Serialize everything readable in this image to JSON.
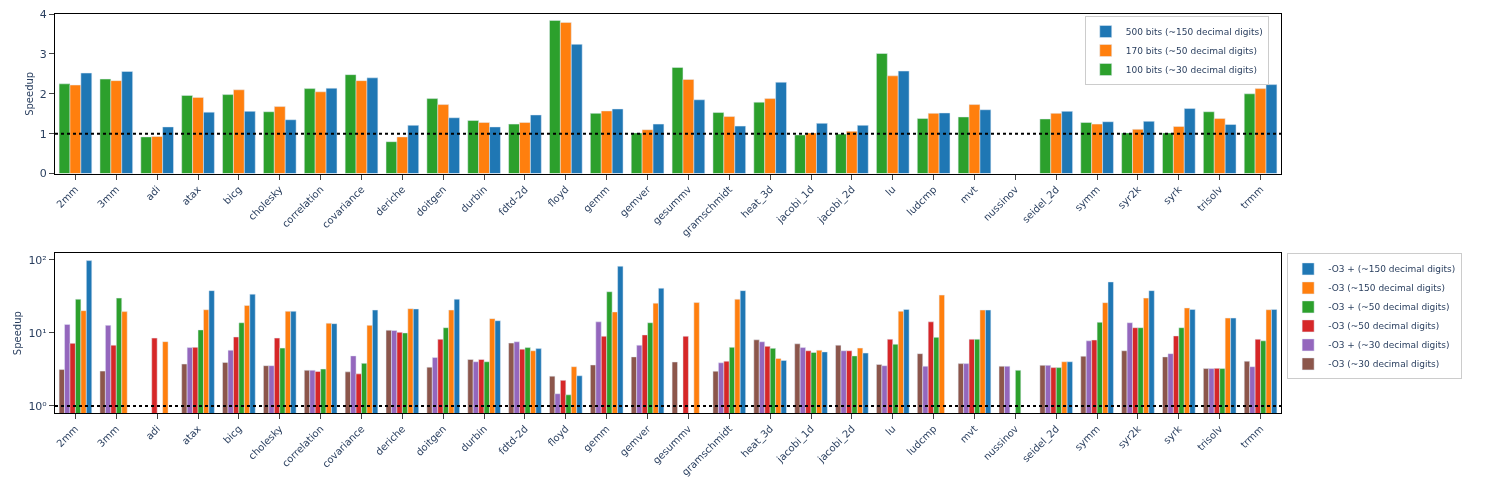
{
  "chart_data": [
    {
      "type": "bar",
      "ylabel": "Speedup",
      "categories": [
        "2mm",
        "3mm",
        "adi",
        "atax",
        "bicg",
        "cholesky",
        "correlation",
        "covariance",
        "deriche",
        "doitgen",
        "durbin",
        "fdtd-2d",
        "floyd",
        "gemm",
        "gemver",
        "gesummv",
        "gramschmidt",
        "heat_3d",
        "jacobi_1d",
        "jacobi_2d",
        "lu",
        "ludcmp",
        "mvt",
        "nussinov",
        "seidel_2d",
        "symm",
        "syr2k",
        "syrk",
        "trisolv",
        "trmm"
      ],
      "series": [
        {
          "name": "100 bits (~30 decimal digits)",
          "color": "#2ca02c",
          "values": [
            2.25,
            2.37,
            0.92,
            1.96,
            1.98,
            1.55,
            2.13,
            2.48,
            0.8,
            1.88,
            1.33,
            1.24,
            3.84,
            1.51,
            1.02,
            2.66,
            1.53,
            1.79,
            0.97,
            0.99,
            3.01,
            1.38,
            1.42,
            null,
            1.37,
            1.28,
            1.02,
            1.02,
            1.55,
            2.0
          ]
        },
        {
          "name": "170 bits (~50 decimal digits)",
          "color": "#ff7f0e",
          "values": [
            2.22,
            2.33,
            0.93,
            1.91,
            2.1,
            1.68,
            2.05,
            2.33,
            0.92,
            1.73,
            1.28,
            1.28,
            3.79,
            1.57,
            1.1,
            2.36,
            1.43,
            1.88,
            1.02,
            1.06,
            2.45,
            1.51,
            1.73,
            null,
            1.51,
            1.24,
            1.11,
            1.18,
            1.38,
            2.13
          ]
        },
        {
          "name": "500 bits (~150 decimal digits)",
          "color": "#1f77b4",
          "values": [
            2.52,
            2.56,
            1.17,
            1.54,
            1.56,
            1.35,
            2.14,
            2.4,
            1.21,
            1.4,
            1.17,
            1.47,
            3.24,
            1.62,
            1.24,
            1.85,
            1.19,
            2.29,
            1.26,
            1.21,
            2.57,
            1.52,
            1.6,
            null,
            1.56,
            1.3,
            1.31,
            1.63,
            1.23,
            2.23
          ]
        }
      ],
      "ylim": [
        0,
        4
      ],
      "yticks": [
        0,
        1,
        2,
        3,
        4
      ],
      "legend": "top right",
      "ref_lines": [
        {
          "axis": "y",
          "value": 1,
          "color": "#000000",
          "line_style": "dotted"
        }
      ]
    },
    {
      "type": "bar",
      "ylabel": "Speedup",
      "log": true,
      "categories": [
        "2mm",
        "3mm",
        "adi",
        "atax",
        "bicg",
        "cholesky",
        "correlation",
        "covariance",
        "deriche",
        "doitgen",
        "durbin",
        "fdtd-2d",
        "floyd",
        "gemm",
        "gemver",
        "gesummv",
        "gramschmidt",
        "heat_3d",
        "jacobi_1d",
        "jacobi_2d",
        "lu",
        "ludcmp",
        "mvt",
        "nussinov",
        "seidel_2d",
        "symm",
        "syr2k",
        "syrk",
        "trisolv",
        "trmm"
      ],
      "series": [
        {
          "name": "-O3 (~30 decimal digits)",
          "color": "#8c564b",
          "values": [
            3.15,
            3.0,
            null,
            3.75,
            3.95,
            3.56,
            3.08,
            2.93,
            10.9,
            3.4,
            4.33,
            7.26,
            2.56,
            3.64,
            4.7,
            4.0,
            2.99,
            8.05,
            7.1,
            6.8,
            3.7,
            5.2,
            3.8,
            3.5,
            3.6,
            4.8,
            5.7,
            4.7,
            3.25,
            4.1
          ]
        },
        {
          "name": "-O3 + (~30 decimal digits)",
          "color": "#9467bd",
          "values": [
            13.1,
            12.7,
            null,
            6.3,
            5.8,
            3.56,
            3.08,
            4.85,
            10.8,
            4.6,
            4.03,
            7.57,
            1.47,
            14.2,
            6.8,
            null,
            3.9,
            7.57,
            6.3,
            5.7,
            3.56,
            3.5,
            3.8,
            3.5,
            3.6,
            7.8,
            13.8,
            5.2,
            3.25,
            3.45
          ]
        },
        {
          "name": "-O3 (~50 decimal digits)",
          "color": "#d62728",
          "values": [
            7.2,
            6.8,
            8.5,
            6.35,
            8.8,
            8.5,
            2.96,
            2.75,
            10.2,
            8.2,
            4.33,
            6.0,
            2.24,
            9.0,
            9.4,
            9.0,
            4.1,
            6.55,
            5.7,
            5.7,
            8.2,
            14.2,
            8.2,
            null,
            3.35,
            8.0,
            11.8,
            9.1,
            3.27,
            8.2
          ]
        },
        {
          "name": "-O3 + (~50 decimal digits)",
          "color": "#2ca02c",
          "values": [
            29,
            30,
            null,
            11,
            13.8,
            6.2,
            3.2,
            3.83,
            10.0,
            11.8,
            4.03,
            6.3,
            1.42,
            36.7,
            13.8,
            null,
            6.35,
            6.15,
            5.4,
            4.85,
            7.0,
            8.7,
            8.2,
            3.08,
            3.35,
            14,
            11.8,
            11.8,
            3.25,
            7.8
          ]
        },
        {
          "name": "-O3 (~150 decimal digits)",
          "color": "#ff7f0e",
          "values": [
            20.2,
            19.6,
            7.6,
            20.8,
            23.8,
            19.8,
            13.6,
            12.7,
            21.5,
            20.6,
            15.7,
            5.7,
            3.45,
            19.4,
            25.6,
            26.1,
            29,
            4.47,
            5.8,
            6.2,
            19.8,
            33,
            20.6,
            null,
            4.03,
            26,
            30,
            22,
            16,
            20.8
          ]
        },
        {
          "name": "-O3 + (~150 decimal digits)",
          "color": "#1f77b4",
          "values": [
            98,
            null,
            null,
            38,
            34,
            19.8,
            13.4,
            20.6,
            21.3,
            29,
            14.7,
            6.1,
            2.59,
            82,
            41,
            null,
            38,
            4.2,
            5.5,
            5.3,
            21,
            null,
            20.6,
            null,
            4.03,
            50,
            38,
            21,
            16,
            21
          ]
        }
      ],
      "ylim": [
        0.8,
        123
      ],
      "yticks": [
        {
          "value": 1,
          "label": "10⁰"
        },
        {
          "value": 10,
          "label": "10¹"
        },
        {
          "value": 100,
          "label": "10²"
        }
      ],
      "legend": "right",
      "ref_lines": [
        {
          "axis": "y",
          "value": 1,
          "color": "#000000",
          "line_style": "dotted"
        }
      ]
    }
  ]
}
